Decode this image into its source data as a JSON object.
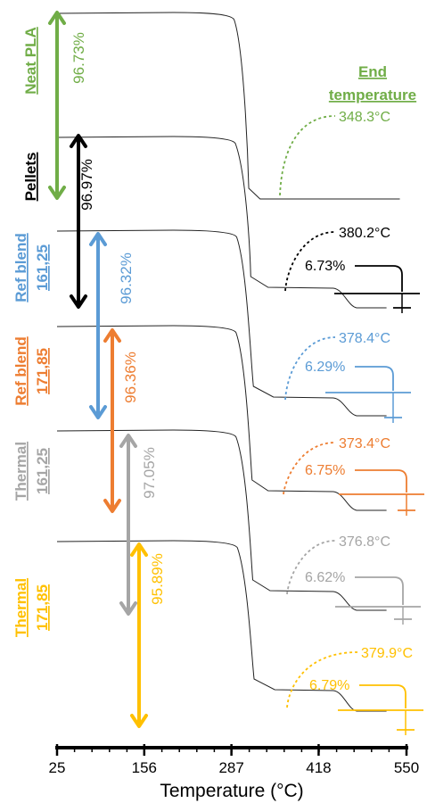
{
  "chart_data": {
    "type": "line",
    "title": "",
    "xlabel": "Temperature (°C)",
    "ylabel": "",
    "xlim": [
      25,
      550
    ],
    "xticks": [
      25,
      156,
      287,
      418,
      550
    ],
    "tick_labels": [
      "25",
      "156",
      "287",
      "418",
      "550"
    ],
    "end_temperature_title": "End temperature",
    "series": [
      {
        "name": "Neat PLA",
        "name_line1": "Neat PLA",
        "name_line2": "",
        "color": "#70ad47",
        "mass_loss": "96.73%",
        "end_temperature": "348.3°C",
        "residue": ""
      },
      {
        "name": "Pellets",
        "name_line1": "Pellets",
        "name_line2": "",
        "color": "#000000",
        "mass_loss": "96.97%",
        "end_temperature": "380.2°C",
        "residue": "6.73%"
      },
      {
        "name": "Ref blend 161,25",
        "name_line1": "Ref blend",
        "name_line2": "161,25",
        "color": "#5b9bd5",
        "mass_loss": "96.32%",
        "end_temperature": "378.4°C",
        "residue": "6.29%"
      },
      {
        "name": "Ref blend 171,85",
        "name_line1": "Ref blend",
        "name_line2": "171,85",
        "color": "#ed7d31",
        "mass_loss": "96.36%",
        "end_temperature": "373.4°C",
        "residue": "6.75%"
      },
      {
        "name": "Thermal 161,25",
        "name_line1": "Thermal",
        "name_line2": "161,25",
        "color": "#a5a5a5",
        "mass_loss": "97.05%",
        "end_temperature": "376.8°C",
        "residue": "6.62%"
      },
      {
        "name": "Thermal 171,85",
        "name_line1": "Thermal",
        "name_line2": "171,85",
        "color": "#ffc000",
        "mass_loss": "95.89%",
        "end_temperature": "379.9°C",
        "residue": "6.79%"
      }
    ]
  }
}
